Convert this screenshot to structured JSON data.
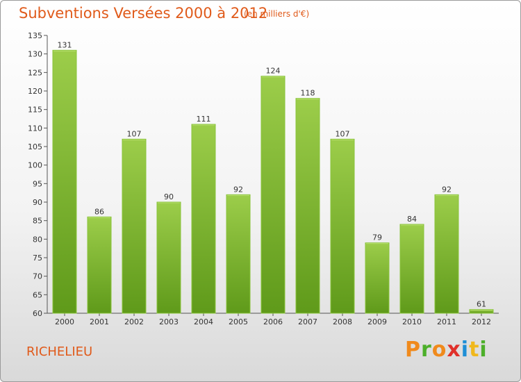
{
  "header": {
    "title": "Subventions Versées 2000 à 2012",
    "unit": "(en milliers d'€)"
  },
  "footer": {
    "commune": "RICHELIEU",
    "logo": {
      "letters": [
        "P",
        "r",
        "o",
        "x",
        "i",
        "t",
        "i"
      ],
      "colors": [
        "#f08a1c",
        "#4caf2a",
        "#f08a1c",
        "#e0302a",
        "#1e8fd6",
        "#f0b81c",
        "#4caf2a"
      ]
    }
  },
  "chart_data": {
    "type": "bar",
    "title": "Subventions Versées 2000 à 2012",
    "subtitle": "(en milliers d'€)",
    "xlabel": "",
    "ylabel": "",
    "categories": [
      "2000",
      "2001",
      "2002",
      "2003",
      "2004",
      "2005",
      "2006",
      "2007",
      "2008",
      "2009",
      "2010",
      "2011",
      "2012"
    ],
    "values": [
      131,
      86,
      107,
      90,
      111,
      92,
      124,
      118,
      107,
      79,
      84,
      92,
      61
    ],
    "ylim": [
      60,
      135
    ],
    "yticks": [
      60,
      65,
      70,
      75,
      80,
      85,
      90,
      95,
      100,
      105,
      110,
      115,
      120,
      125,
      130,
      135
    ],
    "grid": false,
    "legend": "none",
    "colors": {
      "bar_top": "#9ccd4a",
      "bar_bottom": "#5f9a1a",
      "bar_edge": "#8ac43c",
      "axis": "#555555",
      "title": "#e05a1a"
    }
  }
}
